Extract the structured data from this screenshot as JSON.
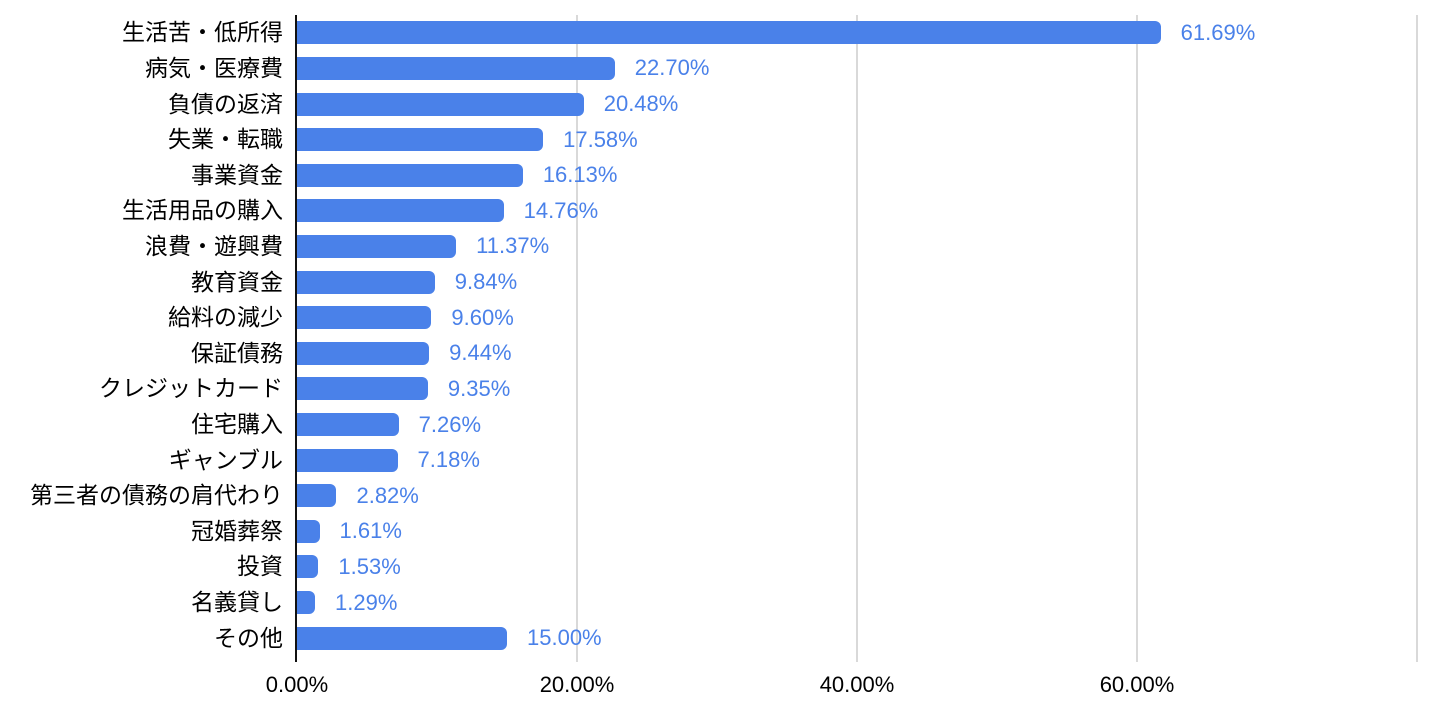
{
  "chart_data": {
    "type": "bar",
    "orientation": "horizontal",
    "title": "",
    "xlabel": "",
    "ylabel": "",
    "categories": [
      "生活苦・低所得",
      "病気・医療費",
      "負債の返済",
      "失業・転職",
      "事業資金",
      "生活用品の購入",
      "浪費・遊興費",
      "教育資金",
      "給料の減少",
      "保証債務",
      "クレジットカード",
      "住宅購入",
      "ギャンブル",
      "第三者の債務の肩代わり",
      "冠婚葬祭",
      "投資",
      "名義貸し",
      "その他"
    ],
    "values": [
      61.69,
      22.7,
      20.48,
      17.58,
      16.13,
      14.76,
      11.37,
      9.84,
      9.6,
      9.44,
      9.35,
      7.26,
      7.18,
      2.82,
      1.61,
      1.53,
      1.29,
      15.0
    ],
    "value_labels": [
      "61.69%",
      "22.70%",
      "20.48%",
      "17.58%",
      "16.13%",
      "14.76%",
      "11.37%",
      "9.84%",
      "9.60%",
      "9.44%",
      "9.35%",
      "7.26%",
      "7.18%",
      "2.82%",
      "1.61%",
      "1.53%",
      "1.29%",
      "15.00%"
    ],
    "xlim": [
      0,
      80
    ],
    "x_tick_labels": [
      "0.00%",
      "20.00%",
      "40.00%",
      "60.00%"
    ],
    "x_tick_values": [
      0,
      20,
      40,
      60
    ],
    "gridline_values": [
      20,
      40,
      60,
      80
    ],
    "grid": true,
    "legend": false,
    "colors": {
      "bar": "#4a81e9",
      "value_label": "#4a81e9",
      "axis_text": "#000000",
      "category_text": "#000000",
      "gridline": "#d9d9d9",
      "axis_line": "#111111",
      "background": "#ffffff"
    }
  }
}
